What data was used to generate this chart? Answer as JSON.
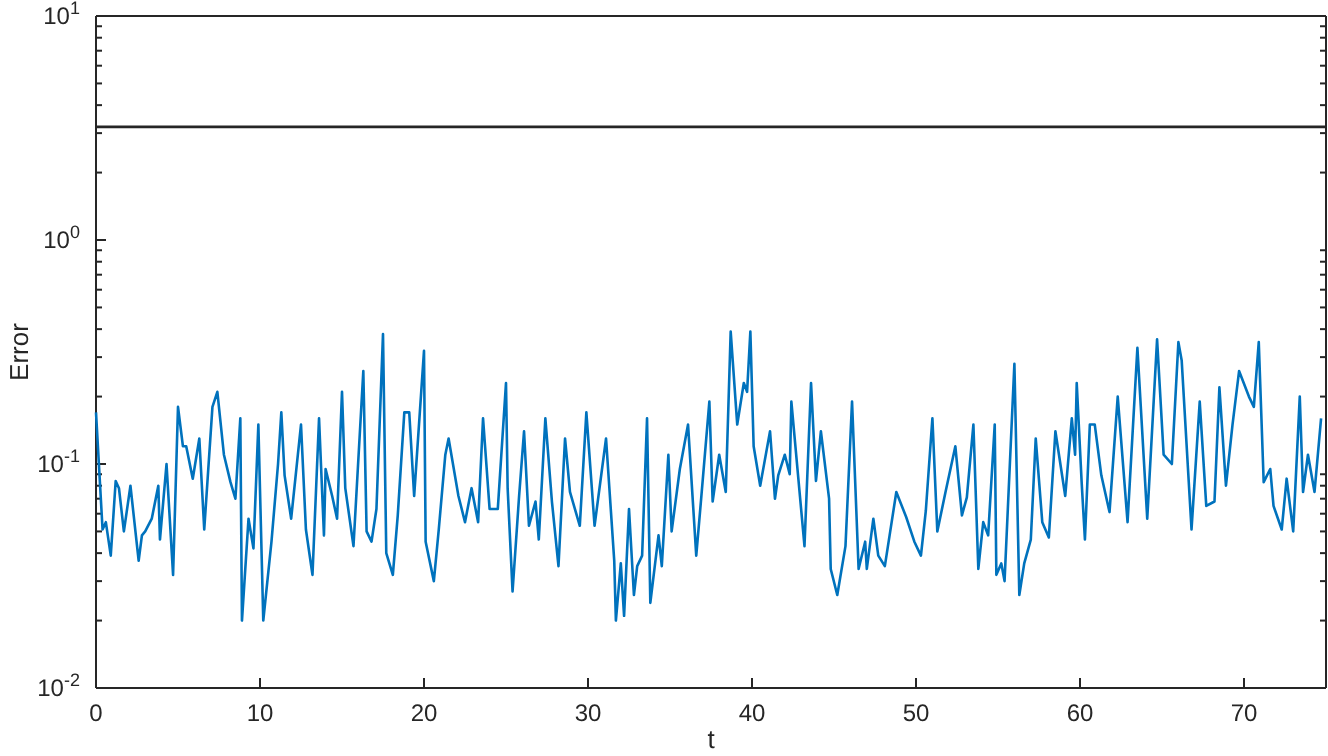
{
  "chart_data": {
    "type": "line",
    "xlabel": "t",
    "ylabel": "Error",
    "log": true,
    "xlim": [
      0,
      75
    ],
    "xticks": [
      0,
      10,
      20,
      30,
      40,
      50,
      60,
      70
    ],
    "ylim": [
      0.01,
      10
    ],
    "yticks": [
      {
        "value": 0.01,
        "label": "10$^{-2}$"
      },
      {
        "value": 0.1,
        "label": "10$^{-1}$"
      },
      {
        "value": 1,
        "label": "10$^{0}$"
      },
      {
        "value": 10,
        "label": "10$^{1}$"
      }
    ],
    "grid": false,
    "ref_lines": [
      {
        "axis": "y",
        "value": 3.2,
        "color": "#262626",
        "line_style": "solid"
      }
    ],
    "series": [
      {
        "color": "#0072bd",
        "x": [
          0.0,
          0.4,
          0.6,
          0.9,
          1.2,
          1.4,
          1.7,
          2.1,
          2.6,
          2.8,
          3.0,
          3.4,
          3.8,
          3.9,
          4.3,
          4.7,
          5.0,
          5.3,
          5.5,
          5.9,
          6.3,
          6.6,
          7.1,
          7.4,
          7.8,
          8.2,
          8.5,
          8.8,
          8.9,
          9.3,
          9.6,
          9.9,
          10.2,
          10.7,
          11.1,
          11.3,
          11.5,
          11.9,
          12.5,
          12.8,
          13.2,
          13.6,
          13.9,
          14.0,
          14.4,
          14.7,
          15.0,
          15.2,
          15.7,
          16.3,
          16.5,
          16.8,
          17.1,
          17.5,
          17.7,
          18.1,
          18.4,
          18.8,
          19.1,
          19.4,
          20.0,
          20.1,
          20.6,
          20.9,
          21.3,
          21.5,
          22.1,
          22.5,
          22.9,
          23.3,
          23.6,
          24.0,
          24.5,
          25.0,
          25.1,
          25.4,
          25.8,
          26.1,
          26.4,
          26.8,
          27.0,
          27.4,
          27.8,
          28.2,
          28.6,
          28.9,
          29.5,
          29.9,
          30.4,
          31.1,
          31.6,
          31.7,
          32.0,
          32.2,
          32.5,
          32.8,
          33.0,
          33.3,
          33.6,
          33.8,
          34.3,
          34.5,
          34.9,
          35.1,
          35.6,
          36.1,
          36.6,
          36.9,
          37.4,
          37.6,
          38.0,
          38.4,
          38.7,
          39.1,
          39.5,
          39.7,
          39.9,
          40.1,
          40.5,
          41.1,
          41.4,
          41.6,
          42.0,
          42.3,
          42.4,
          43.2,
          43.6,
          43.9,
          44.2,
          44.7,
          44.8,
          45.2,
          45.7,
          46.1,
          46.5,
          46.9,
          47.0,
          47.4,
          47.7,
          48.1,
          48.8,
          49.4,
          49.9,
          50.3,
          50.6,
          51.0,
          51.3,
          51.8,
          52.4,
          52.8,
          53.1,
          53.5,
          53.8,
          54.1,
          54.4,
          54.8,
          54.9,
          55.2,
          55.4,
          56.0,
          56.3,
          56.6,
          57.0,
          57.3,
          57.7,
          58.1,
          58.5,
          59.1,
          59.5,
          59.7,
          59.8,
          60.1,
          60.3,
          60.6,
          60.9,
          61.3,
          61.8,
          62.3,
          62.9,
          63.5,
          64.1,
          64.7,
          65.1,
          65.6,
          66.0,
          66.2,
          66.8,
          67.3,
          67.7,
          68.2,
          68.5,
          68.9,
          69.3,
          69.7,
          70.3,
          70.6,
          70.9,
          71.2,
          71.6,
          71.8,
          72.3,
          72.6,
          73.0,
          73.4,
          73.6,
          73.9,
          74.3,
          74.7
        ],
        "values": [
          0.17,
          0.051,
          0.055,
          0.039,
          0.084,
          0.078,
          0.05,
          0.08,
          0.037,
          0.048,
          0.05,
          0.057,
          0.08,
          0.046,
          0.1,
          0.032,
          0.18,
          0.12,
          0.12,
          0.086,
          0.13,
          0.051,
          0.18,
          0.21,
          0.11,
          0.083,
          0.07,
          0.16,
          0.02,
          0.057,
          0.042,
          0.15,
          0.02,
          0.045,
          0.1,
          0.17,
          0.089,
          0.057,
          0.15,
          0.051,
          0.032,
          0.16,
          0.048,
          0.095,
          0.072,
          0.057,
          0.21,
          0.078,
          0.043,
          0.26,
          0.05,
          0.045,
          0.063,
          0.38,
          0.04,
          0.032,
          0.059,
          0.17,
          0.17,
          0.072,
          0.32,
          0.045,
          0.03,
          0.051,
          0.11,
          0.13,
          0.072,
          0.055,
          0.078,
          0.055,
          0.16,
          0.063,
          0.063,
          0.23,
          0.078,
          0.027,
          0.072,
          0.14,
          0.053,
          0.068,
          0.046,
          0.16,
          0.068,
          0.035,
          0.13,
          0.075,
          0.053,
          0.17,
          0.053,
          0.13,
          0.037,
          0.02,
          0.036,
          0.021,
          0.063,
          0.026,
          0.035,
          0.039,
          0.16,
          0.024,
          0.048,
          0.035,
          0.11,
          0.05,
          0.095,
          0.15,
          0.039,
          0.07,
          0.19,
          0.068,
          0.11,
          0.075,
          0.39,
          0.15,
          0.23,
          0.21,
          0.39,
          0.12,
          0.08,
          0.14,
          0.07,
          0.089,
          0.11,
          0.09,
          0.19,
          0.043,
          0.23,
          0.084,
          0.14,
          0.07,
          0.034,
          0.026,
          0.043,
          0.19,
          0.034,
          0.045,
          0.034,
          0.057,
          0.039,
          0.035,
          0.075,
          0.058,
          0.045,
          0.039,
          0.062,
          0.16,
          0.05,
          0.075,
          0.12,
          0.059,
          0.071,
          0.15,
          0.034,
          0.055,
          0.048,
          0.15,
          0.032,
          0.036,
          0.03,
          0.28,
          0.026,
          0.036,
          0.046,
          0.13,
          0.055,
          0.047,
          0.14,
          0.072,
          0.16,
          0.11,
          0.23,
          0.083,
          0.046,
          0.15,
          0.15,
          0.089,
          0.061,
          0.2,
          0.055,
          0.33,
          0.057,
          0.36,
          0.11,
          0.1,
          0.35,
          0.29,
          0.051,
          0.19,
          0.065,
          0.068,
          0.22,
          0.08,
          0.15,
          0.26,
          0.2,
          0.18,
          0.35,
          0.083,
          0.095,
          0.065,
          0.051,
          0.086,
          0.05,
          0.2,
          0.075,
          0.11,
          0.075,
          0.16
        ]
      }
    ]
  }
}
